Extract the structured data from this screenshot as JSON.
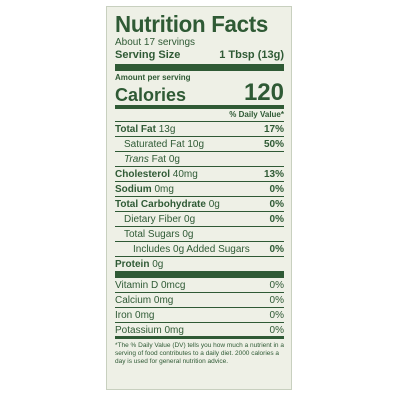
{
  "label": {
    "title": "Nutrition Facts",
    "servings": "About 17 servings",
    "serving_size_label": "Serving Size",
    "serving_size_value": "1 Tbsp (13g)",
    "amount_per_serving": "Amount per serving",
    "calories_label": "Calories",
    "calories_value": "120",
    "dv_header": "% Daily Value*",
    "nutrients": [
      {
        "name": "Total Fat",
        "amount": "13g",
        "dv": "17%"
      },
      {
        "name": "Saturated Fat",
        "amount": "10g",
        "dv": "50%"
      },
      {
        "name": "Trans",
        "amount": "Fat 0g",
        "dv": ""
      },
      {
        "name": "Cholesterol",
        "amount": "40mg",
        "dv": "13%"
      },
      {
        "name": "Sodium",
        "amount": "0mg",
        "dv": "0%"
      },
      {
        "name": "Total Carbohydrate",
        "amount": "0g",
        "dv": "0%"
      },
      {
        "name": "Dietary Fiber",
        "amount": "0g",
        "dv": "0%"
      },
      {
        "name": "Total Sugars",
        "amount": "0g",
        "dv": ""
      },
      {
        "name": "Includes 0g Added Sugars",
        "amount": "",
        "dv": "0%"
      },
      {
        "name": "Protein",
        "amount": "0g",
        "dv": ""
      }
    ],
    "vitamins": [
      {
        "name": "Vitamin D",
        "amount": "0mcg",
        "dv": "0%"
      },
      {
        "name": "Calcium",
        "amount": "0mg",
        "dv": "0%"
      },
      {
        "name": "Iron",
        "amount": "0mg",
        "dv": "0%"
      },
      {
        "name": "Potassium",
        "amount": "0mg",
        "dv": "0%"
      }
    ],
    "footnote": "*The % Daily Value (DV) tells you how much a nutrient in a serving of food contributes to a daily diet. 2000 calories a day is used for general nutrition advice."
  },
  "colors": {
    "ink": "#2f5a35",
    "background": "#eef0e6"
  }
}
